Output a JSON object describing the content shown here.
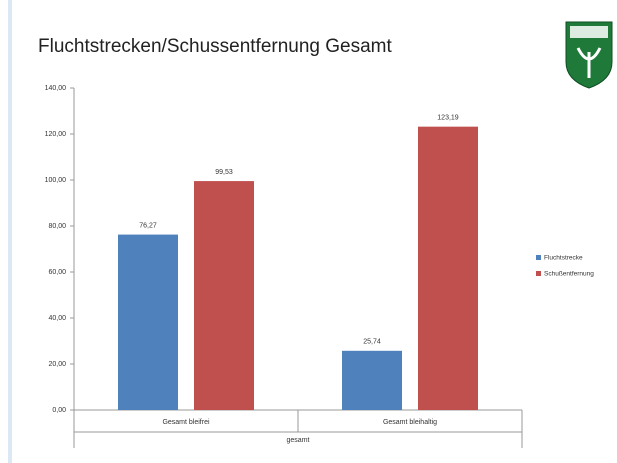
{
  "chart_data": {
    "type": "bar",
    "title": "Fluchtstrecken/Schussentfernung Gesamt",
    "categories": [
      "Gesamt bleifrei",
      "Gesamt bleihaltig"
    ],
    "category_group": "gesamt",
    "series": [
      {
        "name": "Fluchtstrecke",
        "color": "#4f81bd",
        "values": [
          76.27,
          25.74
        ],
        "value_labels": [
          "76,27",
          "25,74"
        ]
      },
      {
        "name": "Schußentfernung",
        "color": "#c0504d",
        "values": [
          99.53,
          123.19
        ],
        "value_labels": [
          "99,53",
          "123,19"
        ]
      }
    ],
    "ylim": [
      0,
      140
    ],
    "yticks": [
      {
        "value": 0,
        "label": "0,00"
      },
      {
        "value": 20,
        "label": "20,00"
      },
      {
        "value": 40,
        "label": "40,00"
      },
      {
        "value": 60,
        "label": "60,00"
      },
      {
        "value": 80,
        "label": "80,00"
      },
      {
        "value": 100,
        "label": "100,00"
      },
      {
        "value": 120,
        "label": "120,00"
      },
      {
        "value": 140,
        "label": "140,00"
      }
    ],
    "grid": false,
    "legend": "right"
  }
}
